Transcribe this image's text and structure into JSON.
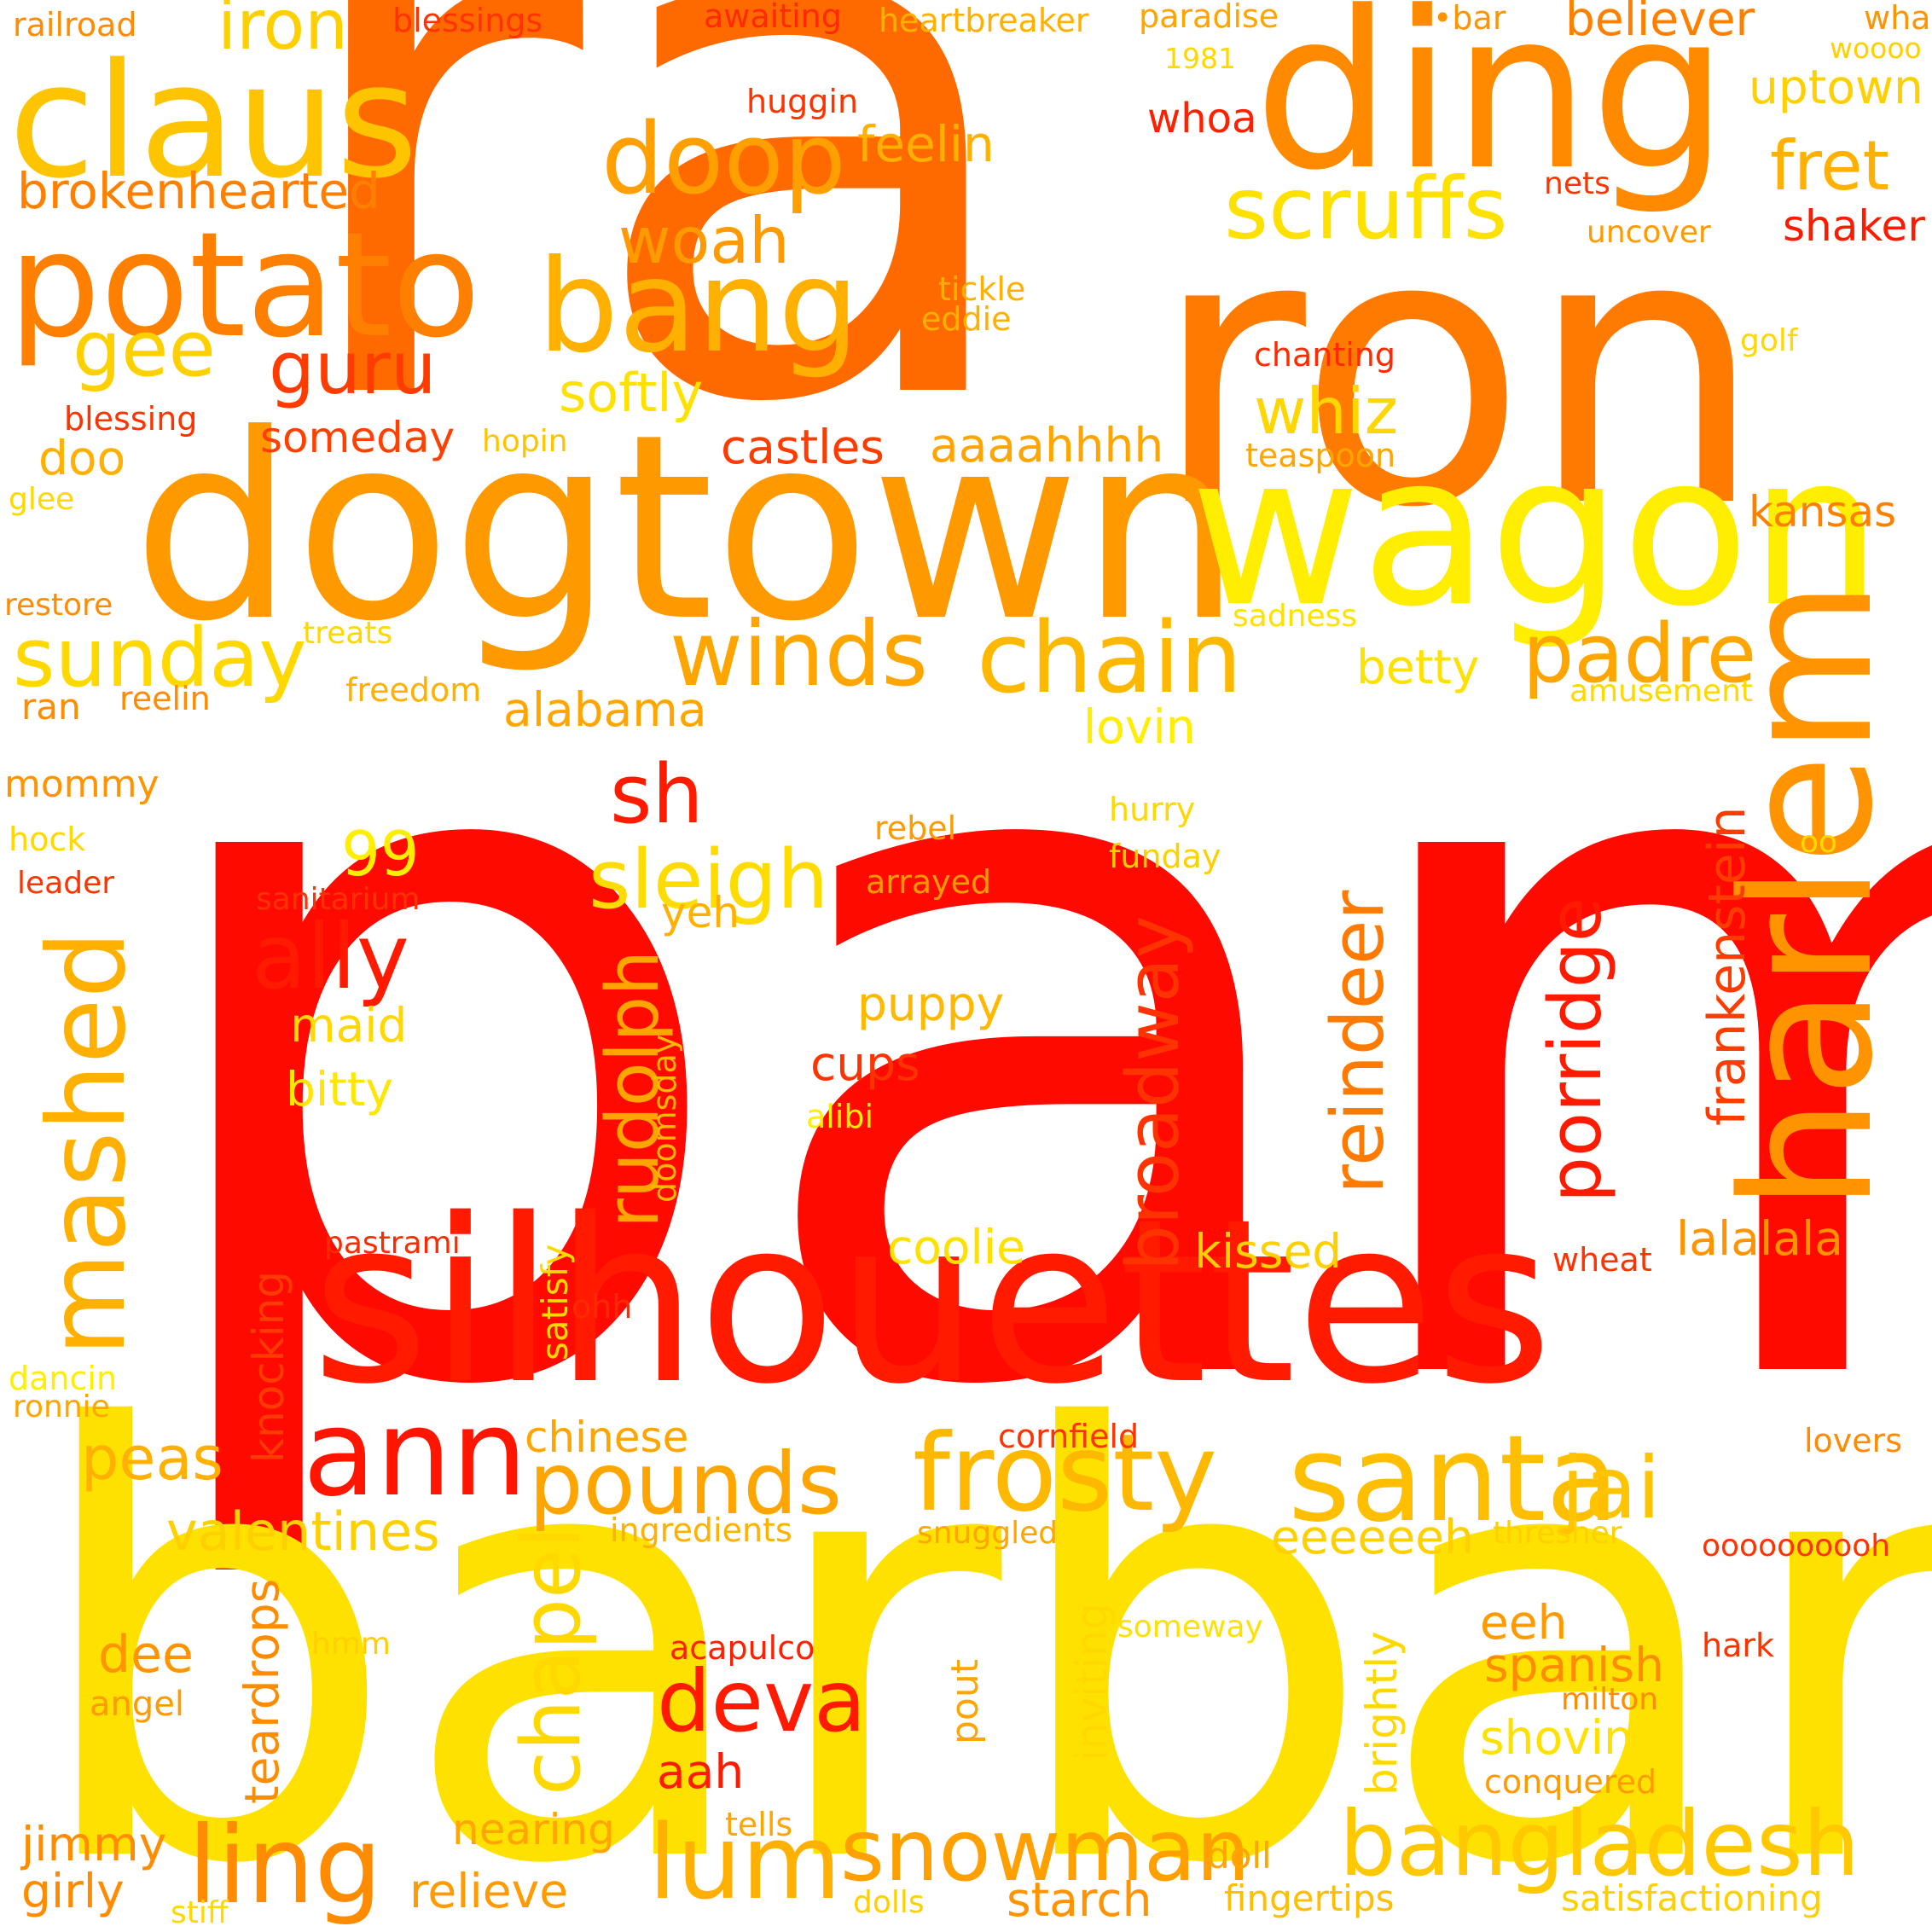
{
  "palette": {
    "red": "#ff0a00",
    "red_orange": "#ff3300",
    "orange": "#ff6600",
    "dark_orange": "#ff8800",
    "light_orange": "#ffa500",
    "gold": "#ffc300",
    "yellow": "#ffe600"
  },
  "words": [
    {
      "id": "pam",
      "text": "pam",
      "color": "#ff0a00"
    },
    {
      "id": "ra",
      "text": "ra",
      "color": "#ff6a00"
    },
    {
      "id": "ron",
      "text": "ron",
      "color": "#ff7a00"
    },
    {
      "id": "barbara",
      "text": "barbara",
      "color": "#ffe100"
    },
    {
      "id": "dogtown",
      "text": "dogtown",
      "color": "#ff9900"
    },
    {
      "id": "silhouettes",
      "text": "silhouettes",
      "color": "#ff1a00"
    },
    {
      "id": "ding",
      "text": "ding",
      "color": "#ff8a00"
    },
    {
      "id": "wagon",
      "text": "wagon",
      "color": "#ffee00"
    },
    {
      "id": "harlem",
      "text": "harlem",
      "color": "#ff9400"
    },
    {
      "id": "claus",
      "text": "claus",
      "color": "#ffc400"
    },
    {
      "id": "potato",
      "text": "potato",
      "color": "#ff7f00"
    },
    {
      "id": "bang",
      "text": "bang",
      "color": "#ffb000"
    },
    {
      "id": "doop",
      "text": "doop",
      "color": "#ffa000"
    },
    {
      "id": "scruffs",
      "text": "scruffs",
      "color": "#ffe100"
    },
    {
      "id": "winds",
      "text": "winds",
      "color": "#ffa500"
    },
    {
      "id": "chain",
      "text": "chain",
      "color": "#ffb800"
    },
    {
      "id": "sunday",
      "text": "sunday",
      "color": "#ffd800"
    },
    {
      "id": "padre",
      "text": "padre",
      "color": "#ffa500"
    },
    {
      "id": "frosty",
      "text": "frosty",
      "color": "#ffb800"
    },
    {
      "id": "santa",
      "text": "santa",
      "color": "#ffbe00"
    },
    {
      "id": "ann",
      "text": "ann",
      "color": "#ff1500"
    },
    {
      "id": "ling",
      "text": "ling",
      "color": "#ff8c00"
    },
    {
      "id": "lum",
      "text": "lum",
      "color": "#ffb000"
    },
    {
      "id": "bangladesh",
      "text": "bangladesh",
      "color": "#ffc800"
    },
    {
      "id": "snowman",
      "text": "snowman",
      "color": "#ffa000"
    },
    {
      "id": "pounds",
      "text": "pounds",
      "color": "#ffa500"
    },
    {
      "id": "deva",
      "text": "deva",
      "color": "#ff1a00"
    },
    {
      "id": "jai",
      "text": "jai",
      "color": "#ffc400"
    },
    {
      "id": "mashed",
      "text": "mashed",
      "color": "#ffb000"
    },
    {
      "id": "ally",
      "text": "ally",
      "color": "#ff1a00"
    },
    {
      "id": "sleigh",
      "text": "sleigh",
      "color": "#ffdc00"
    },
    {
      "id": "sh",
      "text": "sh",
      "color": "#ff1a00"
    },
    {
      "id": "gee",
      "text": "gee",
      "color": "#ffd000"
    },
    {
      "id": "guru",
      "text": "guru",
      "color": "#ff3c00"
    },
    {
      "id": "woah",
      "text": "woah",
      "color": "#ff9a00"
    },
    {
      "id": "whiz",
      "text": "whiz",
      "color": "#ffd600"
    },
    {
      "id": "iron",
      "text": "iron",
      "color": "#ffd000"
    },
    {
      "id": "fret",
      "text": "fret",
      "color": "#ffb000"
    },
    {
      "id": "brokenhearted",
      "text": "brokenhearted",
      "color": "#ff8000"
    },
    {
      "id": "feelin",
      "text": "feelin",
      "color": "#ffb000"
    },
    {
      "id": "believer",
      "text": "believer",
      "color": "#ff8000"
    },
    {
      "id": "uptown",
      "text": "uptown",
      "color": "#ffd000"
    },
    {
      "id": "shaker",
      "text": "shaker",
      "color": "#ff1a00"
    },
    {
      "id": "softly",
      "text": "softly",
      "color": "#ffe100"
    },
    {
      "id": "someday",
      "text": "someday",
      "color": "#ff4000"
    },
    {
      "id": "castles",
      "text": "castles",
      "color": "#ff3c00"
    },
    {
      "id": "aaaahhhh",
      "text": "aaaahhhh",
      "color": "#ffa500"
    },
    {
      "id": "doo",
      "text": "doo",
      "color": "#ffb000"
    },
    {
      "id": "kansas",
      "text": "kansas",
      "color": "#ff8000"
    },
    {
      "id": "betty",
      "text": "betty",
      "color": "#ffe100"
    },
    {
      "id": "alabama",
      "text": "alabama",
      "color": "#ffa500"
    },
    {
      "id": "lovin",
      "text": "lovin",
      "color": "#ffee00"
    },
    {
      "id": "ninety-nine",
      "text": "99",
      "color": "#ffee00"
    },
    {
      "id": "maid",
      "text": "maid",
      "color": "#ffd800"
    },
    {
      "id": "bitty",
      "text": "bitty",
      "color": "#ffe600"
    },
    {
      "id": "yeh",
      "text": "yeh",
      "color": "#ffb000"
    },
    {
      "id": "puppy",
      "text": "puppy",
      "color": "#ffb800"
    },
    {
      "id": "cups",
      "text": "cups",
      "color": "#ff3300"
    },
    {
      "id": "coolie",
      "text": "coolie",
      "color": "#ffe100"
    },
    {
      "id": "kissed",
      "text": "kissed",
      "color": "#ffd000"
    },
    {
      "id": "lalalala",
      "text": "lalalala",
      "color": "#ff9400"
    },
    {
      "id": "peas",
      "text": "peas",
      "color": "#ffb000"
    },
    {
      "id": "chinese",
      "text": "chinese",
      "color": "#ffa500"
    },
    {
      "id": "valentines",
      "text": "valentines",
      "color": "#ffd000"
    },
    {
      "id": "eeeeeeh",
      "text": "eeeeeeh",
      "color": "#ffd000"
    },
    {
      "id": "eeh",
      "text": "eeh",
      "color": "#ff9a00"
    },
    {
      "id": "dee",
      "text": "dee",
      "color": "#ff9400"
    },
    {
      "id": "spanish",
      "text": "spanish",
      "color": "#ff8c00"
    },
    {
      "id": "shoving",
      "text": "shoving",
      "color": "#ffe100"
    },
    {
      "id": "aah",
      "text": "aah",
      "color": "#ff1a00"
    },
    {
      "id": "jimmy",
      "text": "jimmy",
      "color": "#ff8c00"
    },
    {
      "id": "girly",
      "text": "girly",
      "color": "#ff8c00"
    },
    {
      "id": "relieve",
      "text": "relieve",
      "color": "#ff9a00"
    },
    {
      "id": "nearing",
      "text": "nearing",
      "color": "#ffa500"
    },
    {
      "id": "starch",
      "text": "starch",
      "color": "#ff9400"
    },
    {
      "id": "doll",
      "text": "doll",
      "color": "#ffa500"
    },
    {
      "id": "fingertips",
      "text": "fingertips",
      "color": "#ffbe00"
    },
    {
      "id": "satisfactioning",
      "text": "satisfactioning",
      "color": "#ffd000"
    },
    {
      "id": "railroad",
      "text": "railroad",
      "color": "#ff8c00"
    },
    {
      "id": "blessings",
      "text": "blessings",
      "color": "#ff3300"
    },
    {
      "id": "awaiting",
      "text": "awaiting",
      "color": "#ff2a00"
    },
    {
      "id": "heartbreaker",
      "text": "heartbreaker",
      "color": "#ffb000"
    },
    {
      "id": "paradise",
      "text": "paradise",
      "color": "#ffa500"
    },
    {
      "id": "bar",
      "text": "•bar",
      "color": "#ff9400"
    },
    {
      "id": "wha",
      "text": "wha",
      "color": "#ff9400"
    },
    {
      "id": "woooo",
      "text": "woooo",
      "color": "#ffd000"
    },
    {
      "id": "year-1981",
      "text": "1981",
      "color": "#ffd800"
    },
    {
      "id": "huggin",
      "text": "huggin",
      "color": "#ff3300"
    },
    {
      "id": "whoa",
      "text": "whoa",
      "color": "#ff2000"
    },
    {
      "id": "nets",
      "text": "nets",
      "color": "#ff3300"
    },
    {
      "id": "uncover",
      "text": "uncover",
      "color": "#ff9a00"
    },
    {
      "id": "tickle",
      "text": "tickle",
      "color": "#ffb000"
    },
    {
      "id": "eddie",
      "text": "eddie",
      "color": "#ffb000"
    },
    {
      "id": "chanting",
      "text": "chanting",
      "color": "#ff2a00"
    },
    {
      "id": "golf",
      "text": "golf",
      "color": "#ffd800"
    },
    {
      "id": "blessing",
      "text": "blessing",
      "color": "#ff3300"
    },
    {
      "id": "hopin",
      "text": "hopin",
      "color": "#ffc400"
    },
    {
      "id": "teaspoon",
      "text": "teaspoon",
      "color": "#ffa500"
    },
    {
      "id": "glee",
      "text": "glee",
      "color": "#ffd800"
    },
    {
      "id": "restore",
      "text": "restore",
      "color": "#ff8c00"
    },
    {
      "id": "treats",
      "text": "treats",
      "color": "#ffd800"
    },
    {
      "id": "sadness",
      "text": "sadness",
      "color": "#ffe100"
    },
    {
      "id": "ran",
      "text": "ran",
      "color": "#ff8c00"
    },
    {
      "id": "reelin",
      "text": "reelin",
      "color": "#ff8c00"
    },
    {
      "id": "freedom",
      "text": "freedom",
      "color": "#ffb000"
    },
    {
      "id": "amusement",
      "text": "amusement",
      "color": "#ffd800"
    },
    {
      "id": "mommy",
      "text": "mommy",
      "color": "#ff9400"
    },
    {
      "id": "hock",
      "text": "hock",
      "color": "#ffd800"
    },
    {
      "id": "leader",
      "text": "leader",
      "color": "#ff3300"
    },
    {
      "id": "sanitarium",
      "text": "sanitarium",
      "color": "#ff3300"
    },
    {
      "id": "rebel",
      "text": "rebel",
      "color": "#ff9a00"
    },
    {
      "id": "arrayed",
      "text": "arrayed",
      "color": "#ff9a00"
    },
    {
      "id": "hurry",
      "text": "hurry",
      "color": "#ffd800"
    },
    {
      "id": "funday",
      "text": "funday",
      "color": "#ffd000"
    },
    {
      "id": "oo",
      "text": "oo",
      "color": "#ffd800"
    },
    {
      "id": "alibi",
      "text": "alibi",
      "color": "#ffee00"
    },
    {
      "id": "pastrami",
      "text": "pastrami",
      "color": "#ff2a00"
    },
    {
      "id": "ohh",
      "text": "ohh",
      "color": "#ff2a00"
    },
    {
      "id": "wheat",
      "text": "wheat",
      "color": "#ff3300"
    },
    {
      "id": "dancin",
      "text": "dancin",
      "color": "#ffee00"
    },
    {
      "id": "ronnie",
      "text": "ronnie",
      "color": "#ffa500"
    },
    {
      "id": "cornfield",
      "text": "cornfield",
      "color": "#ff3300"
    },
    {
      "id": "lovers",
      "text": "lovers",
      "color": "#ff8c00"
    },
    {
      "id": "ingredients",
      "text": "ingredients",
      "color": "#ffb000"
    },
    {
      "id": "snuggled",
      "text": "snuggled",
      "color": "#ffa500"
    },
    {
      "id": "thresher",
      "text": "thresher",
      "color": "#ffd000"
    },
    {
      "id": "oooooooooh",
      "text": "oooooooooh",
      "color": "#ff3300"
    },
    {
      "id": "someway",
      "text": "someway",
      "color": "#ffe100"
    },
    {
      "id": "hmm",
      "text": "hmm",
      "color": "#ffd000"
    },
    {
      "id": "acapulco",
      "text": "acapulco",
      "color": "#ff2000"
    },
    {
      "id": "hark",
      "text": "hark",
      "color": "#ff3300"
    },
    {
      "id": "milton",
      "text": "milton",
      "color": "#ff8c00"
    },
    {
      "id": "angel",
      "text": "angel",
      "color": "#ff9a00"
    },
    {
      "id": "conquered",
      "text": "conquered",
      "color": "#ff9a00"
    },
    {
      "id": "tells",
      "text": "tells",
      "color": "#ffa500"
    },
    {
      "id": "dolls",
      "text": "dolls",
      "color": "#ffd000"
    },
    {
      "id": "stiff",
      "text": "stiff",
      "color": "#ffd800"
    },
    {
      "id": "rudolph",
      "text": "rudolph",
      "color": "#ffa500"
    },
    {
      "id": "reindeer",
      "text": "reindeer",
      "color": "#ff7a00"
    },
    {
      "id": "broadway",
      "text": "broadway",
      "color": "#ff3300"
    },
    {
      "id": "porridge",
      "text": "porridge",
      "color": "#ff1a00"
    },
    {
      "id": "frankenstein",
      "text": "frankenstein",
      "color": "#ff3c00"
    },
    {
      "id": "doomsday",
      "text": "doomsday",
      "color": "#ffb800"
    },
    {
      "id": "satisfy",
      "text": "satisfy",
      "color": "#ffd800"
    },
    {
      "id": "knocking",
      "text": "knocking",
      "color": "#ff3c00"
    },
    {
      "id": "chapel",
      "text": "chapel",
      "color": "#ffd800"
    },
    {
      "id": "teardrops",
      "text": "teardrops",
      "color": "#ff8c00"
    },
    {
      "id": "inviting",
      "text": "inviting",
      "color": "#ffd800"
    },
    {
      "id": "brightly",
      "text": "brightly",
      "color": "#ffd800"
    },
    {
      "id": "pout",
      "text": "pout",
      "color": "#ffa500"
    }
  ]
}
